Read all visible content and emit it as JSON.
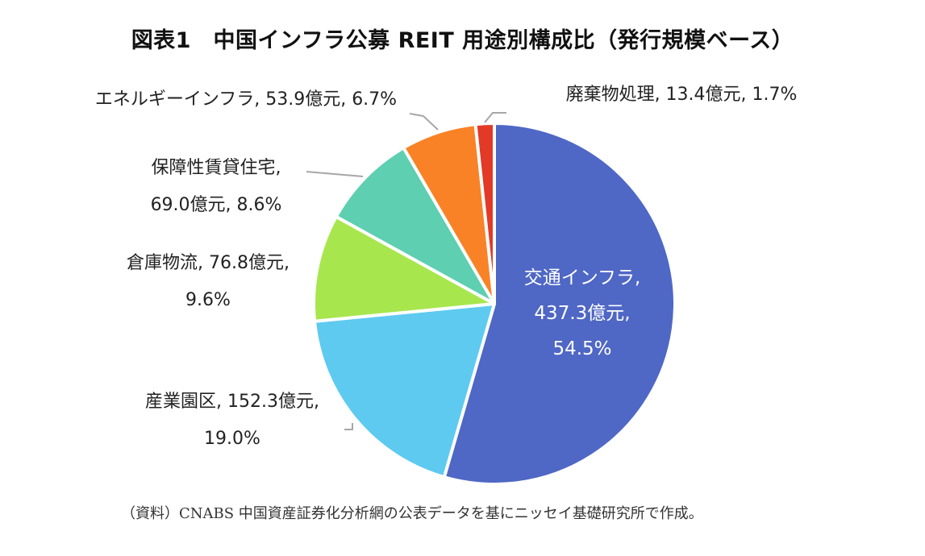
{
  "chart_data": {
    "type": "pie",
    "title": "図表1　中国インフラ公募 REIT 用途別構成比（発行規模ベース）",
    "unit": "億元",
    "slices": [
      {
        "name": "交通インフラ",
        "value": 437.3,
        "percent": 54.5,
        "color": "#4f67c5",
        "label_lines": [
          "交通インフラ,",
          "437.3億元,",
          "54.5%"
        ]
      },
      {
        "name": "産業園区",
        "value": 152.3,
        "percent": 19.0,
        "color": "#5ecaf0",
        "label_lines": [
          "産業園区, 152.3億元,",
          "19.0%"
        ]
      },
      {
        "name": "倉庫物流",
        "value": 76.8,
        "percent": 9.6,
        "color": "#a8e64e",
        "label_lines": [
          "倉庫物流, 76.8億元,",
          "9.6%"
        ]
      },
      {
        "name": "保障性賃貸住宅",
        "value": 69.0,
        "percent": 8.6,
        "color": "#5ecfb1",
        "label_lines": [
          "保障性賃貸住宅,",
          "69.0億元, 8.6%"
        ]
      },
      {
        "name": "エネルギーインフラ",
        "value": 53.9,
        "percent": 6.7,
        "color": "#f98226",
        "label_lines": [
          "エネルギーインフラ, 53.9億元, 6.7%"
        ]
      },
      {
        "name": "廃棄物処理",
        "value": 13.4,
        "percent": 1.7,
        "color": "#e23a26",
        "label_lines": [
          "廃棄物処理, 13.4億元, 1.7%"
        ]
      }
    ]
  },
  "source_note": "（資料）CNABS 中国資産証券化分析網の公表データを基にニッセイ基礎研究所で作成。"
}
